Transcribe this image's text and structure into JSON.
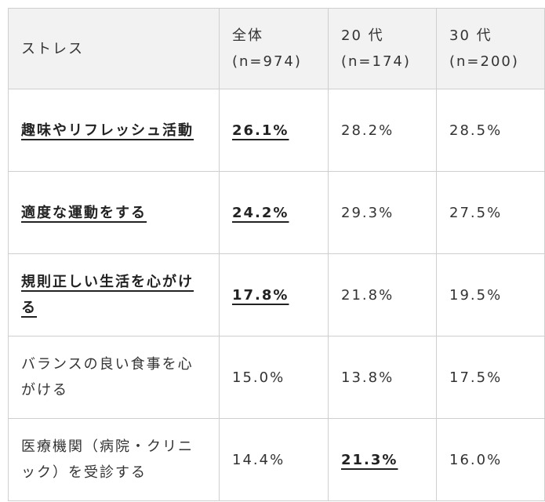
{
  "table": {
    "header": [
      "ストレス",
      "全体\n(n=974)",
      "20 代\n(n=174)",
      "30 代\n(n=200)"
    ],
    "rows": [
      [
        {
          "text": "趣味やリフレッシュ活動",
          "bold": true
        },
        {
          "text": "26.1%",
          "bold": true
        },
        {
          "text": "28.2%",
          "bold": false
        },
        {
          "text": "28.5%",
          "bold": false
        }
      ],
      [
        {
          "text": "適度な運動をする",
          "bold": true
        },
        {
          "text": "24.2%",
          "bold": true
        },
        {
          "text": "29.3%",
          "bold": false
        },
        {
          "text": "27.5%",
          "bold": false
        }
      ],
      [
        {
          "text": "規則正しい生活を心がける",
          "bold": true
        },
        {
          "text": "17.8%",
          "bold": true
        },
        {
          "text": "21.8%",
          "bold": false
        },
        {
          "text": "19.5%",
          "bold": false
        }
      ],
      [
        {
          "text": "バランスの良い食事を心がける",
          "bold": false
        },
        {
          "text": "15.0%",
          "bold": false
        },
        {
          "text": "13.8%",
          "bold": false
        },
        {
          "text": "17.5%",
          "bold": false
        }
      ],
      [
        {
          "text": "医療機関（病院・クリニック）を受診する",
          "bold": false
        },
        {
          "text": "14.4%",
          "bold": false
        },
        {
          "text": "21.3%",
          "bold": true
        },
        {
          "text": "16.0%",
          "bold": false
        }
      ]
    ]
  }
}
